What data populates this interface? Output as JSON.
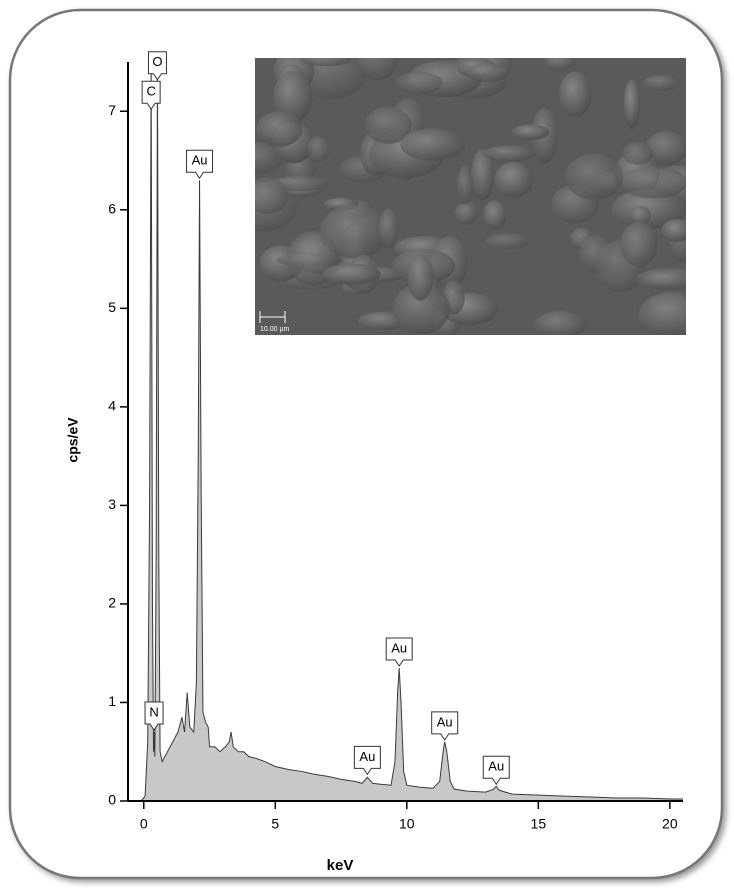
{
  "chart_data": {
    "type": "area",
    "xlabel": "keV",
    "ylabel": "cps/eV",
    "xlim": [
      -0.6,
      20.5
    ],
    "ylim": [
      0,
      7.5
    ],
    "xticks": [
      0,
      5,
      10,
      15,
      20
    ],
    "yticks": [
      0,
      1,
      2,
      3,
      4,
      5,
      6,
      7
    ],
    "color": "#c8c8c8",
    "line_color": "#3a3a3a",
    "x": [
      -0.1,
      0.05,
      0.15,
      0.22,
      0.28,
      0.33,
      0.37,
      0.39,
      0.42,
      0.47,
      0.52,
      0.57,
      0.62,
      0.7,
      0.9,
      1.1,
      1.3,
      1.45,
      1.55,
      1.65,
      1.75,
      1.9,
      2.0,
      2.07,
      2.12,
      2.18,
      2.25,
      2.35,
      2.45,
      2.5,
      2.7,
      2.9,
      3.1,
      3.25,
      3.32,
      3.4,
      3.6,
      3.8,
      4.0,
      4.3,
      4.6,
      5.0,
      5.5,
      6.0,
      6.5,
      7.0,
      7.5,
      8.0,
      8.3,
      8.5,
      8.7,
      9.0,
      9.4,
      9.55,
      9.65,
      9.71,
      9.78,
      9.88,
      10.0,
      10.5,
      11.0,
      11.25,
      11.38,
      11.44,
      11.52,
      11.65,
      11.8,
      12.3,
      13.0,
      13.3,
      13.4,
      13.5,
      14.0,
      15.0,
      16.0,
      17.0,
      18.0,
      19.0,
      20.0,
      20.5
    ],
    "values": [
      0,
      0.05,
      0.6,
      3,
      7.5,
      2,
      0.5,
      0.7,
      0.45,
      2.5,
      7.5,
      2.5,
      0.5,
      0.4,
      0.5,
      0.6,
      0.7,
      0.85,
      0.7,
      1.1,
      0.75,
      0.7,
      1.2,
      3.5,
      6.3,
      3.2,
      0.9,
      0.8,
      0.75,
      0.55,
      0.55,
      0.5,
      0.55,
      0.6,
      0.7,
      0.55,
      0.5,
      0.5,
      0.45,
      0.43,
      0.4,
      0.35,
      0.32,
      0.3,
      0.27,
      0.25,
      0.22,
      0.2,
      0.18,
      0.24,
      0.18,
      0.17,
      0.16,
      0.4,
      1.1,
      1.35,
      1.0,
      0.3,
      0.16,
      0.14,
      0.13,
      0.2,
      0.5,
      0.6,
      0.5,
      0.2,
      0.12,
      0.1,
      0.09,
      0.12,
      0.15,
      0.11,
      0.07,
      0.06,
      0.05,
      0.04,
      0.03,
      0.03,
      0.02,
      0.02
    ],
    "annotations": [
      {
        "text": "C",
        "x": 0.28,
        "y": 7.0
      },
      {
        "text": "O",
        "x": 0.52,
        "y": 7.3
      },
      {
        "text": "N",
        "x": 0.39,
        "y": 0.7
      },
      {
        "text": "Au",
        "x": 2.12,
        "y": 6.3
      },
      {
        "text": "Au",
        "x": 8.5,
        "y": 0.25
      },
      {
        "text": "Au",
        "x": 9.71,
        "y": 1.35
      },
      {
        "text": "Au",
        "x": 11.44,
        "y": 0.6
      },
      {
        "text": "Au",
        "x": 13.4,
        "y": 0.15
      }
    ],
    "image_scale_label": "10.00 µm"
  }
}
